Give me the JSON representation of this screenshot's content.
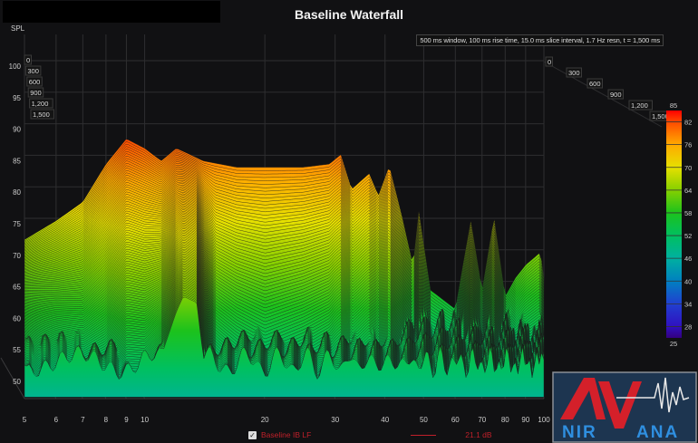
{
  "title": "Baseline Waterfall",
  "annotation": "500 ms window, 100 ms rise time, 15.0 ms slice interval, 1.7 Hz resn, t = 1,500 ms",
  "legend": {
    "checked": true,
    "checkbox_glyph": "✓",
    "series_name": "Baseline IB LF",
    "value": "21.1 dB",
    "color": "#c0202a"
  },
  "logo_text": "AV NIRVANA",
  "chart_data": {
    "type": "waterfall",
    "title": "Baseline Waterfall",
    "ylabel": "SPL",
    "xlabel": "",
    "x_scale": "log",
    "xlim": [
      5,
      100
    ],
    "ylim": [
      50,
      100
    ],
    "x_ticks": [
      5,
      6,
      7,
      8,
      9,
      10,
      20,
      30,
      40,
      50,
      60,
      70,
      80,
      90,
      100
    ],
    "y_ticks": [
      50,
      55,
      60,
      65,
      70,
      75,
      80,
      85,
      90,
      95,
      100
    ],
    "time_ticks_ms": [
      "0",
      "300",
      "600",
      "900",
      "1,200",
      "1,500"
    ],
    "time_range_ms": [
      0,
      1500
    ],
    "slice_interval_ms": 15,
    "colorbar": {
      "min": 25,
      "max": 85,
      "ticks": [
        85,
        82,
        76,
        70,
        64,
        58,
        52,
        46,
        40,
        34,
        28,
        25
      ],
      "colors": [
        "#ff0000",
        "#ff4a00",
        "#ffaa00",
        "#e6e000",
        "#86d000",
        "#1cc21c",
        "#00c060",
        "#00b0a0",
        "#0080c0",
        "#2040d0",
        "#3010c0",
        "#340080"
      ]
    },
    "grid": true,
    "initial_response": {
      "freq_hz": [
        5,
        6,
        7,
        8,
        9,
        10,
        11,
        12,
        12.5,
        13.5,
        14,
        17,
        20,
        25,
        29,
        31,
        33,
        36.5,
        38.5,
        41,
        44,
        47,
        48.6,
        52,
        60,
        65.6,
        70,
        75,
        80,
        85,
        90,
        98,
        100
      ],
      "spl_db": [
        66,
        69,
        72,
        78,
        82,
        80.5,
        78.5,
        80.5,
        80,
        79,
        78.5,
        77.5,
        77.5,
        77.5,
        78,
        79.5,
        74,
        76.5,
        73,
        77.7,
        70,
        62,
        70.5,
        58,
        55,
        69,
        58,
        69.5,
        57,
        60,
        62,
        64,
        60
      ]
    },
    "decay_db_per_100ms": {
      "freq_hz": [
        5,
        8,
        10,
        12,
        12.5,
        13.5,
        15,
        20,
        30,
        41,
        50,
        65.6,
        75,
        90,
        100
      ],
      "rate": [
        0.9,
        2.2,
        2.0,
        1.3,
        1.1,
        1.1,
        2.6,
        3.2,
        2.6,
        2.5,
        3.0,
        2.0,
        2.2,
        2.4,
        2.5
      ]
    },
    "noise_floor_db": 53
  }
}
